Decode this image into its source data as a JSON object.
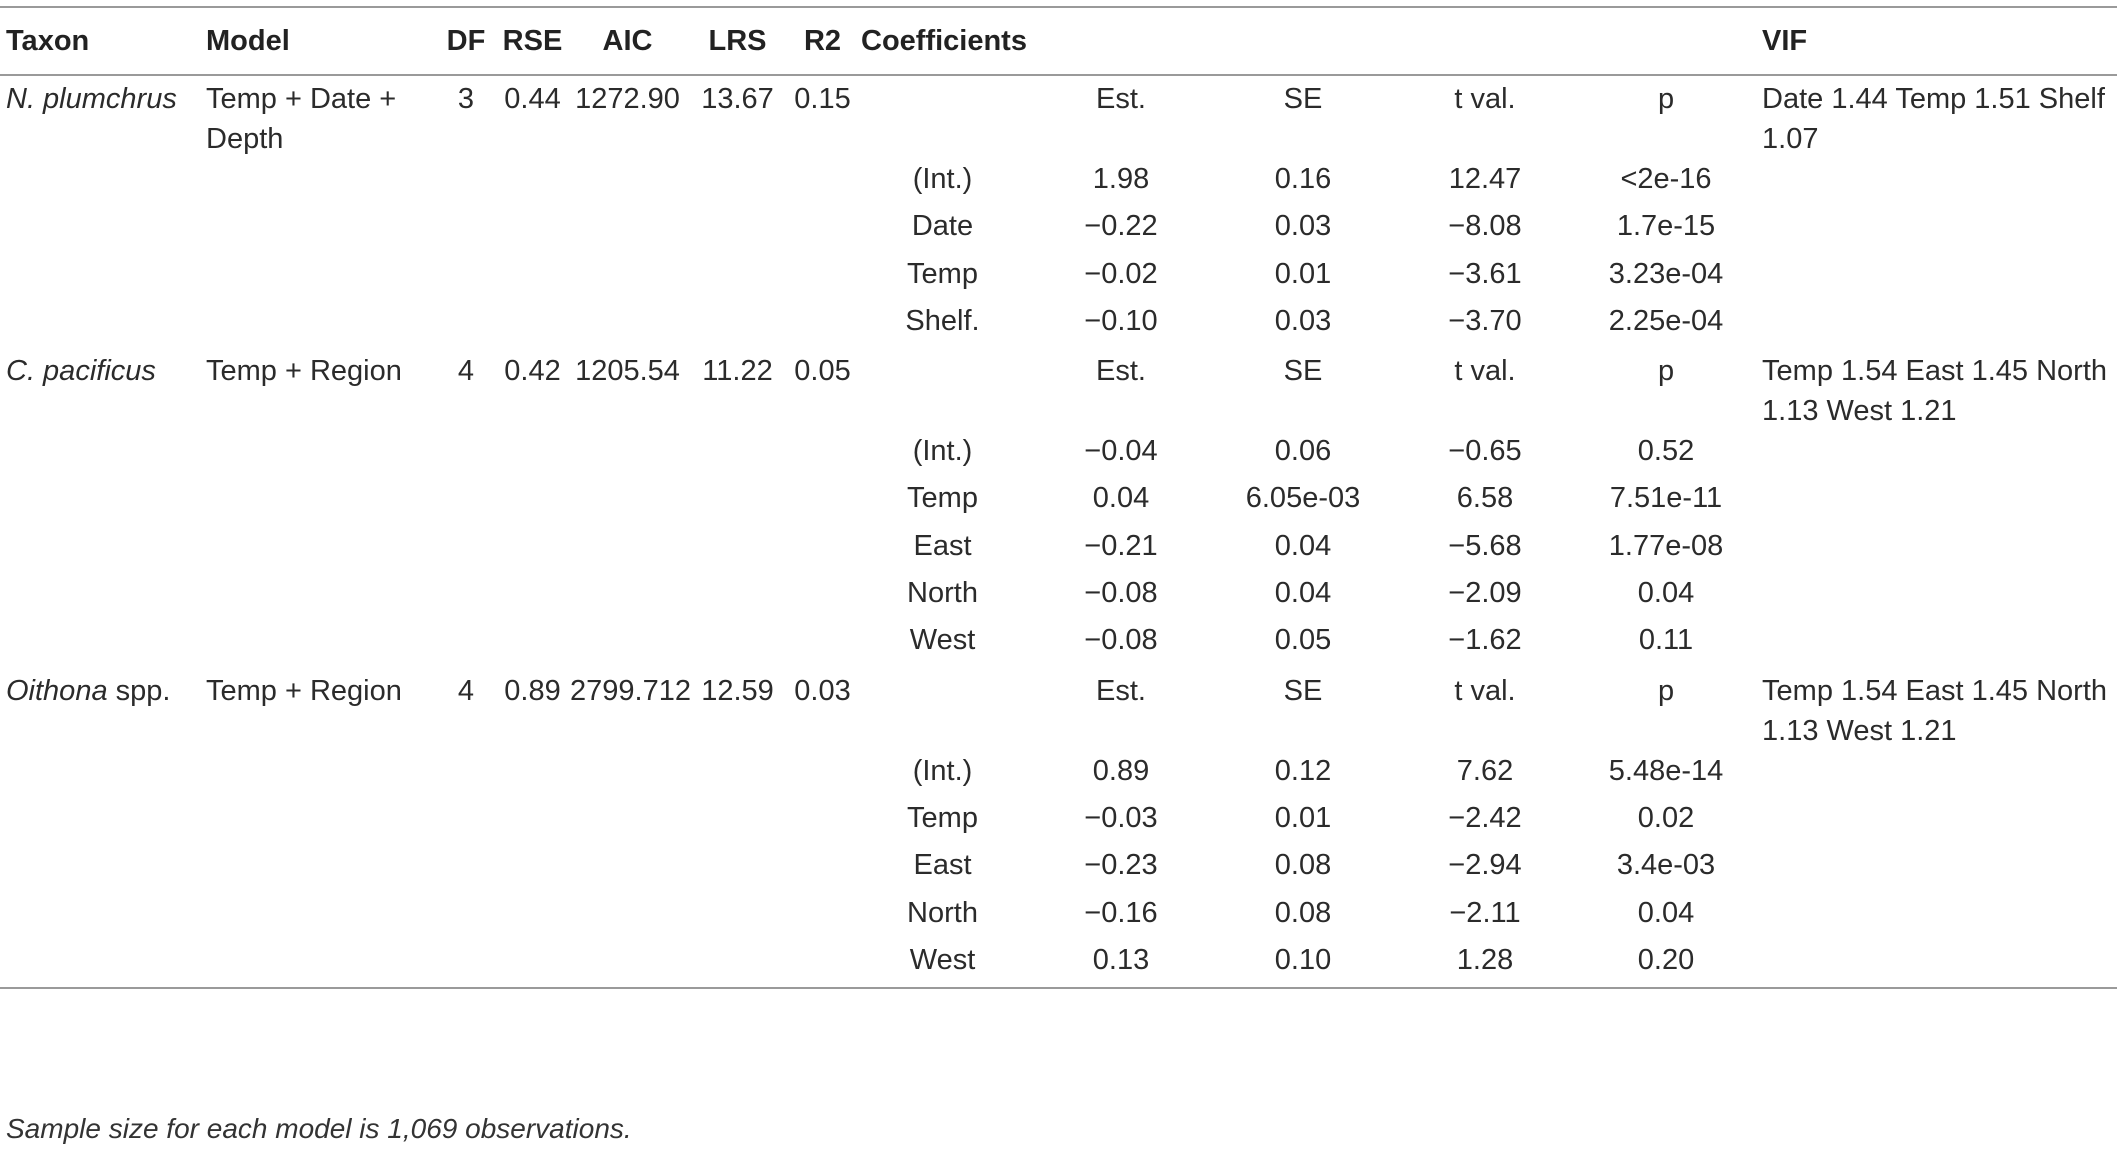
{
  "headers": {
    "taxon": "Taxon",
    "model": "Model",
    "df": "DF",
    "rse": "RSE",
    "aic": "AIC",
    "lrs": "LRS",
    "r2": "R2",
    "coefficients": "Coefficients",
    "vif": "VIF"
  },
  "coef_headers": {
    "est": "Est.",
    "se": "SE",
    "tval": "t val.",
    "p": "p"
  },
  "groups": [
    {
      "taxon_italic": "N. plumchrus",
      "taxon_suffix": "",
      "model": "Temp + Date + Depth",
      "df": "3",
      "rse": "0.44",
      "aic": "1272.90",
      "lrs": "13.67",
      "r2": "0.15",
      "vif": "Date 1.44 Temp 1.51 Shelf 1.07",
      "rows": [
        {
          "term": "(Int.)",
          "est": "1.98",
          "se": "0.16",
          "tval": "12.47",
          "p": "<2e-16"
        },
        {
          "term": "Date",
          "est": "−0.22",
          "se": "0.03",
          "tval": "−8.08",
          "p": "1.7e-15"
        },
        {
          "term": "Temp",
          "est": "−0.02",
          "se": "0.01",
          "tval": "−3.61",
          "p": "3.23e-04"
        },
        {
          "term": "Shelf.",
          "est": "−0.10",
          "se": "0.03",
          "tval": "−3.70",
          "p": "2.25e-04"
        }
      ]
    },
    {
      "taxon_italic": "C. pacificus",
      "taxon_suffix": "",
      "model": "Temp + Region",
      "df": "4",
      "rse": "0.42",
      "aic": "1205.54",
      "lrs": "11.22",
      "r2": "0.05",
      "vif": "Temp 1.54 East 1.45 North 1.13 West 1.21",
      "rows": [
        {
          "term": "(Int.)",
          "est": "−0.04",
          "se": "0.06",
          "tval": "−0.65",
          "p": "0.52"
        },
        {
          "term": "Temp",
          "est": "0.04",
          "se": "6.05e-03",
          "tval": "6.58",
          "p": "7.51e-11"
        },
        {
          "term": "East",
          "est": "−0.21",
          "se": "0.04",
          "tval": "−5.68",
          "p": "1.77e-08"
        },
        {
          "term": "North",
          "est": "−0.08",
          "se": "0.04",
          "tval": "−2.09",
          "p": "0.04"
        },
        {
          "term": "West",
          "est": "−0.08",
          "se": "0.05",
          "tval": "−1.62",
          "p": "0.11"
        }
      ]
    },
    {
      "taxon_italic": "Oithona",
      "taxon_suffix": " spp.",
      "model": "Temp + Region",
      "df": "4",
      "rse": "0.89",
      "aic": "2799.712",
      "lrs": "12.59",
      "r2": "0.03",
      "vif": "Temp 1.54 East 1.45 North 1.13 West 1.21",
      "rows": [
        {
          "term": "(Int.)",
          "est": "0.89",
          "se": "0.12",
          "tval": "7.62",
          "p": "5.48e-14"
        },
        {
          "term": "Temp",
          "est": "−0.03",
          "se": "0.01",
          "tval": "−2.42",
          "p": "0.02"
        },
        {
          "term": "East",
          "est": "−0.23",
          "se": "0.08",
          "tval": "−2.94",
          "p": "3.4e-03"
        },
        {
          "term": "North",
          "est": "−0.16",
          "se": "0.08",
          "tval": "−2.11",
          "p": "0.04"
        },
        {
          "term": "West",
          "est": "0.13",
          "se": "0.10",
          "tval": "1.28",
          "p": "0.20"
        }
      ]
    }
  ],
  "footnote": "Sample size for each model is 1,069 observations."
}
